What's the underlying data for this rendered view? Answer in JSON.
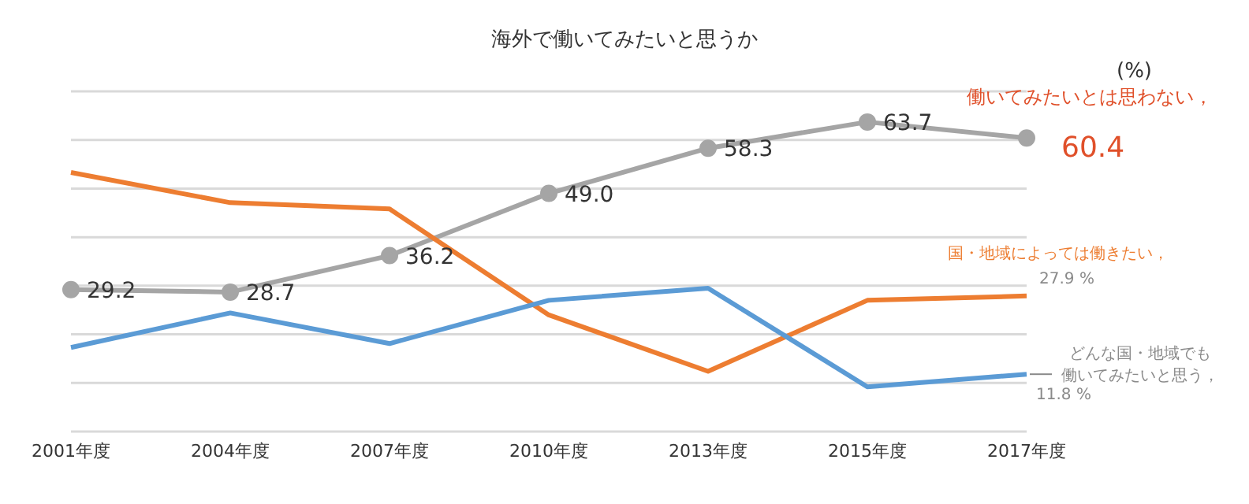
{
  "chart_data": {
    "type": "line",
    "title": "海外で働いてみたいと思うか",
    "ylabel": "(%)",
    "categories": [
      "2001年度",
      "2004年度",
      "2007年度",
      "2010年度",
      "2013年度",
      "2015年度",
      "2017年度"
    ],
    "series": [
      {
        "name": "働いてみたいとは思わない，",
        "color": "#a5a5a5",
        "values": [
          29.2,
          28.7,
          36.2,
          49.0,
          58.3,
          63.7,
          60.4
        ],
        "value_labels": [
          "29.2",
          "28.7",
          "36.2",
          "49.0",
          "58.3",
          "63.7",
          "60.4"
        ]
      },
      {
        "name": "国・地域によっては働きたい，",
        "color": "#ed7d31",
        "marker": "none",
        "values": [
          53.3,
          47.1,
          45.8,
          24.0,
          12.4,
          27.0,
          27.9
        ],
        "value_labels": [
          null,
          null,
          null,
          null,
          null,
          null,
          "27.9 %"
        ]
      },
      {
        "name": "どんな国・地域でも働いてみたいと思う，",
        "color": "#5b9bd5",
        "marker": "none",
        "values": [
          17.3,
          24.4,
          18.1,
          27.0,
          29.5,
          9.2,
          11.8
        ],
        "value_labels": [
          null,
          null,
          null,
          null,
          null,
          null,
          "11.8 %"
        ]
      }
    ],
    "ylim": [
      0,
      70
    ],
    "yticks": [
      {
        "value": 0,
        "label": null
      },
      {
        "value": 10,
        "label": null
      },
      {
        "value": 20,
        "label": null
      },
      {
        "value": 30,
        "label": null
      },
      {
        "value": 40,
        "label": null
      },
      {
        "value": 50,
        "label": null
      },
      {
        "value": 60,
        "label": null
      },
      {
        "value": 70,
        "label": null
      }
    ],
    "grid": "y",
    "tick_labels": "x",
    "marker": "circle",
    "line_style": "solid",
    "legend": false
  }
}
